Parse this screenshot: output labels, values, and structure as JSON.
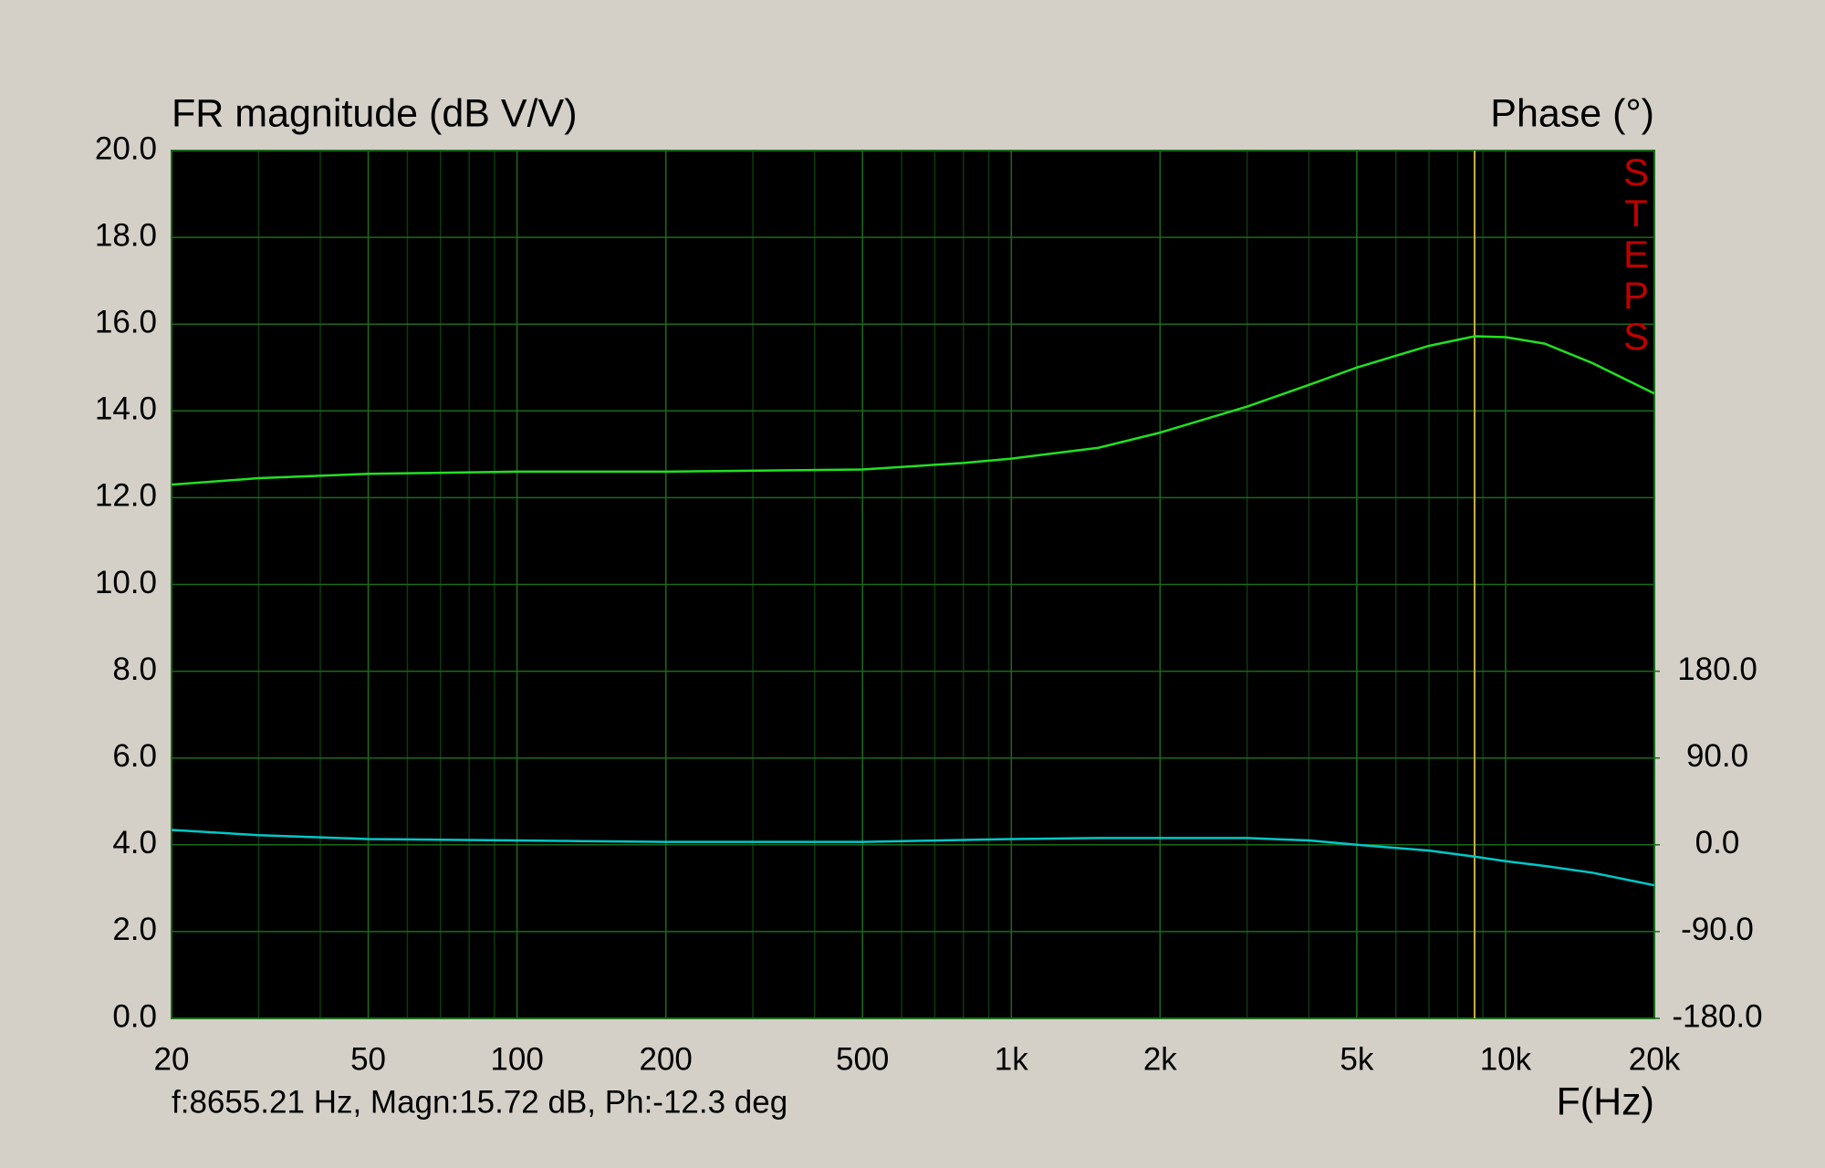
{
  "chart_data": {
    "type": "line",
    "title": "FR magnitude (dB V/V)",
    "y2_title": "Phase (°)",
    "x_label": "F(Hz)",
    "side_label": "STEPS",
    "status": "f:8655.21 Hz, Magn:15.72 dB, Ph:-12.3 deg",
    "cursor": 8655.21,
    "log_x": true,
    "grid": true,
    "x": [
      20,
      30,
      50,
      100,
      200,
      500,
      800,
      1000,
      1500,
      2000,
      3000,
      4000,
      5000,
      7000,
      8655.21,
      10000,
      12000,
      15000,
      20000
    ],
    "series": [
      {
        "name": "Magnitude",
        "color": "#22e022",
        "values": [
          12.3,
          12.45,
          12.55,
          12.6,
          12.6,
          12.65,
          12.8,
          12.9,
          13.15,
          13.5,
          14.1,
          14.6,
          15.0,
          15.5,
          15.72,
          15.7,
          15.55,
          15.1,
          14.4
        ]
      },
      {
        "name": "Phase",
        "color": "#00c8c8",
        "axis": "y2",
        "values": [
          15.4,
          10,
          6,
          4.5,
          3,
          3,
          5,
          6,
          7,
          7,
          7,
          4.5,
          0,
          -6,
          -12.3,
          -17,
          -22,
          -29,
          -42
        ]
      }
    ],
    "xlim": [
      20,
      20000
    ],
    "xticks": [
      20,
      50,
      100,
      200,
      500,
      {
        "value": 1000,
        "label": "1k"
      },
      {
        "value": 2000,
        "label": "2k"
      },
      {
        "value": 5000,
        "label": "5k"
      },
      {
        "value": 10000,
        "label": "10k"
      },
      {
        "value": 20000,
        "label": "20k"
      }
    ],
    "ylim": [
      0,
      20
    ],
    "yticks": [
      {
        "value": 0,
        "label": "0.0"
      },
      {
        "value": 2,
        "label": "2.0"
      },
      {
        "value": 4,
        "label": "4.0"
      },
      {
        "value": 6,
        "label": "6.0"
      },
      {
        "value": 8,
        "label": "8.0"
      },
      {
        "value": 10,
        "label": "10.0"
      },
      {
        "value": 12,
        "label": "12.0"
      },
      {
        "value": 14,
        "label": "14.0"
      },
      {
        "value": 16,
        "label": "16.0"
      },
      {
        "value": 18,
        "label": "18.0"
      },
      {
        "value": 20,
        "label": "20.0"
      }
    ],
    "y2lim": [
      -180,
      720
    ],
    "y2ticks": [
      {
        "value": -180,
        "label": "-180.0"
      },
      {
        "value": -90,
        "label": "-90.0"
      },
      {
        "value": 0,
        "label": "0.0"
      },
      {
        "value": 90,
        "label": "90.0"
      },
      {
        "value": 180,
        "label": "180.0"
      }
    ]
  }
}
